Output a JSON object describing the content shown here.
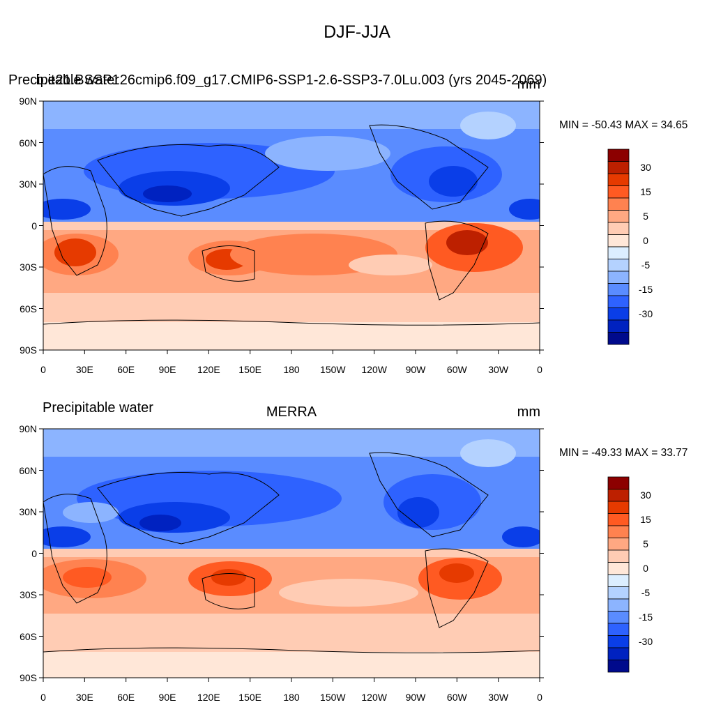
{
  "figure": {
    "title": "DJF-JJA"
  },
  "panels": [
    {
      "left_title": "Precipitable water",
      "center_title": "b.e21.BSSP126cmip6.f09_g17.CMIP6-SSP1-2.6-SSP3-7.0Lu.003 (yrs 2045-2069)",
      "units": "mm",
      "min_max": "MIN = -50.43 MAX =  34.65"
    },
    {
      "left_title": "Precipitable water",
      "center_title": "MERRA",
      "units": "mm",
      "min_max": "MIN = -49.33 MAX =  33.77"
    }
  ],
  "axes": {
    "lat_ticks": [
      "90N",
      "60N",
      "30N",
      "0",
      "30S",
      "60S",
      "90S"
    ],
    "lon_ticks": [
      "0",
      "30E",
      "60E",
      "90E",
      "120E",
      "150E",
      "180",
      "150W",
      "120W",
      "90W",
      "60W",
      "30W",
      "0"
    ]
  },
  "colorbar": {
    "labels": [
      "30",
      "15",
      "5",
      "0",
      "-5",
      "-15",
      "-30"
    ],
    "colors": [
      "#8c0000",
      "#bd2000",
      "#e63a00",
      "#ff5a22",
      "#ff8250",
      "#ffa882",
      "#ffccb4",
      "#ffe7d8",
      "#dceeff",
      "#b4d2ff",
      "#8cb4ff",
      "#5a8cff",
      "#2e62ff",
      "#0a3ee8",
      "#0022c0",
      "#000a8c"
    ]
  },
  "chart_data": [
    {
      "type": "heatmap",
      "title": "b.e21.BSSP126cmip6.f09_g17.CMIP6-SSP1-2.6-SSP3-7.0Lu.003 (yrs 2045-2069)",
      "left_title": "Precipitable water",
      "units": "mm",
      "min": -50.43,
      "max": 34.65,
      "x_range_deg": [
        0,
        360
      ],
      "y_range_deg": [
        -90,
        90
      ],
      "contour_levels": [
        -35,
        -30,
        -25,
        -20,
        -15,
        -10,
        -5,
        -2,
        0,
        2,
        5,
        10,
        15,
        20,
        25,
        30,
        35
      ]
    },
    {
      "type": "heatmap",
      "title": "MERRA",
      "left_title": "Precipitable water",
      "units": "mm",
      "min": -49.33,
      "max": 33.77,
      "x_range_deg": [
        0,
        360
      ],
      "y_range_deg": [
        -90,
        90
      ],
      "contour_levels": [
        -35,
        -30,
        -25,
        -20,
        -15,
        -10,
        -5,
        -2,
        0,
        2,
        5,
        10,
        15,
        20,
        25,
        30,
        35
      ]
    }
  ]
}
